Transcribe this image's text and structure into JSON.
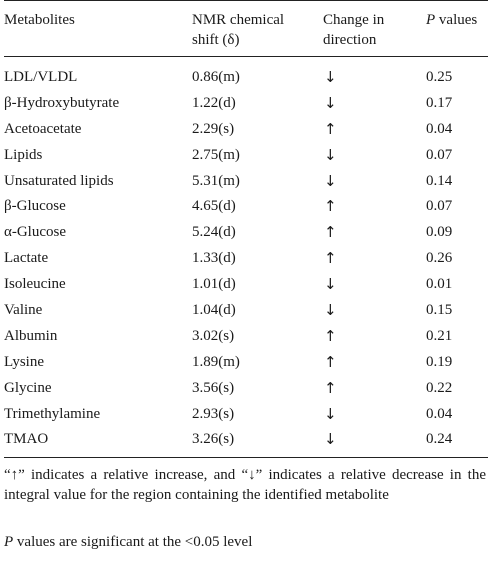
{
  "table": {
    "headers": {
      "metabolites": "Metabolites",
      "shift_line1": "NMR chemical",
      "shift_line2": "shift (δ)",
      "direction_line1": "Change in",
      "direction_line2": "direction",
      "p_italic": "P",
      "p_rest": " values"
    },
    "rows": [
      {
        "metabolite": "LDL/VLDL",
        "shift": "0.86(m)",
        "direction": "↓",
        "p": "0.25"
      },
      {
        "metabolite": "β-Hydroxybutyrate",
        "shift": "1.22(d)",
        "direction": "↓",
        "p": "0.17"
      },
      {
        "metabolite": "Acetoacetate",
        "shift": "2.29(s)",
        "direction": "↑",
        "p": "0.04"
      },
      {
        "metabolite": "Lipids",
        "shift": "2.75(m)",
        "direction": "↓",
        "p": "0.07"
      },
      {
        "metabolite": "Unsaturated lipids",
        "shift": "5.31(m)",
        "direction": "↓",
        "p": "0.14"
      },
      {
        "metabolite": "β-Glucose",
        "shift": "4.65(d)",
        "direction": "↑",
        "p": "0.07"
      },
      {
        "metabolite": "α-Glucose",
        "shift": "5.24(d)",
        "direction": "↑",
        "p": "0.09"
      },
      {
        "metabolite": "Lactate",
        "shift": "1.33(d)",
        "direction": "↑",
        "p": "0.26"
      },
      {
        "metabolite": "Isoleucine",
        "shift": "1.01(d)",
        "direction": "↓",
        "p": "0.01"
      },
      {
        "metabolite": "Valine",
        "shift": "1.04(d)",
        "direction": "↓",
        "p": "0.15"
      },
      {
        "metabolite": "Albumin",
        "shift": "3.02(s)",
        "direction": "↑",
        "p": "0.21"
      },
      {
        "metabolite": "Lysine",
        "shift": "1.89(m)",
        "direction": "↑",
        "p": "0.19"
      },
      {
        "metabolite": "Glycine",
        "shift": "3.56(s)",
        "direction": "↑",
        "p": "0.22"
      },
      {
        "metabolite": "Trimethylamine",
        "shift": "2.93(s)",
        "direction": "↓",
        "p": "0.04"
      },
      {
        "metabolite": "TMAO",
        "shift": "3.26(s)",
        "direction": "↓",
        "p": "0.24"
      }
    ]
  },
  "footnotes": {
    "note1": "“↑” indicates a relative increase, and “↓” indicates a relative decrease in the integral value for the region containing the identified metabolite",
    "note2_italic": "P",
    "note2_rest": " values are significant at the <0.05 level"
  }
}
